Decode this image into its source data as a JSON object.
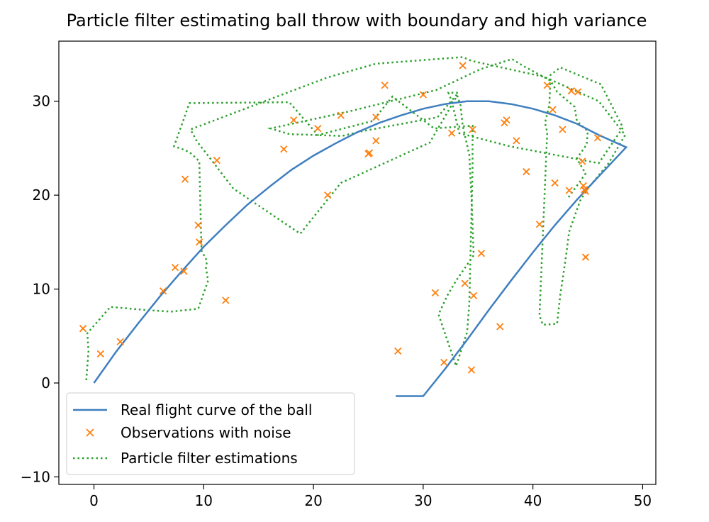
{
  "chart_data": {
    "type": "line",
    "title": "Particle filter estimating ball throw with boundary and high variance",
    "xlabel": "",
    "ylabel": "",
    "xlim": [
      -3.2,
      51.2
    ],
    "ylim": [
      -10.8,
      36.4
    ],
    "xticks": [
      0,
      10,
      20,
      30,
      40,
      50
    ],
    "yticks": [
      -10,
      0,
      10,
      20,
      30
    ],
    "grid": false,
    "legend_position": "lower-left",
    "colors": {
      "real": "#3f7fbf",
      "obs": "#ff7f0e",
      "pf": "#2ca02c"
    },
    "series": [
      {
        "name": "Real flight curve of the ball",
        "style": "solid",
        "x": [
          0,
          2,
          4,
          6,
          8,
          10,
          12,
          14,
          16,
          18,
          20,
          22,
          24,
          26,
          28,
          30,
          32,
          34,
          35,
          36,
          38,
          40,
          42,
          44,
          46,
          48.5,
          46,
          44,
          42,
          40,
          38,
          36,
          34,
          32,
          30,
          27.5
        ],
        "y": [
          0,
          3.3,
          6.3,
          9.2,
          11.9,
          14.5,
          16.8,
          19.0,
          20.9,
          22.7,
          24.2,
          25.5,
          26.7,
          27.7,
          28.5,
          29.2,
          29.7,
          30.0,
          30.0,
          30.0,
          29.7,
          29.2,
          28.5,
          27.6,
          26.4,
          25.1,
          22.0,
          19.5,
          16.8,
          13.9,
          10.9,
          7.8,
          4.6,
          1.5,
          -1.4,
          -1.4
        ]
      },
      {
        "name": "Observations with noise",
        "style": "markers",
        "x": [
          -1,
          0.6,
          2.4,
          6.3,
          7.4,
          8.2,
          8.3,
          9.5,
          9.6,
          11.2,
          12.0,
          17.3,
          18.2,
          20.4,
          21.3,
          22.5,
          25.0,
          25.1,
          25.7,
          25.7,
          26.5,
          27.7,
          30.0,
          31.1,
          31.9,
          32.6,
          33.6,
          33.8,
          34.5,
          34.6,
          34.4,
          35.3,
          37.0,
          37.4,
          37.6,
          38.5,
          39.4,
          40.6,
          41.3,
          41.8,
          42.0,
          42.7,
          43.3,
          43.5,
          44.1,
          44.5,
          44.7,
          44.8,
          44.8,
          44.6,
          45.9
        ],
        "y": [
          5.8,
          3.1,
          4.4,
          9.8,
          12.3,
          11.9,
          21.7,
          16.8,
          15.0,
          23.7,
          8.8,
          24.9,
          28.0,
          27.1,
          20.0,
          28.5,
          24.4,
          24.5,
          25.8,
          28.3,
          31.7,
          3.4,
          30.7,
          9.6,
          2.2,
          26.6,
          33.8,
          10.6,
          27.0,
          9.3,
          1.4,
          13.8,
          6.0,
          27.7,
          28.0,
          25.8,
          22.5,
          16.9,
          31.7,
          29.1,
          21.3,
          27.0,
          20.5,
          31.1,
          31.0,
          23.6,
          20.6,
          20.4,
          13.4,
          21.0,
          26.1
        ]
      },
      {
        "name": "Particle filter estimations",
        "style": "dotted",
        "x": [
          -0.7,
          -0.5,
          -0.6,
          1.5,
          4.4,
          7.0,
          9.5,
          10.4,
          10.2,
          10.3,
          9.8,
          9.6,
          8.9,
          8.3,
          7.3,
          8.7,
          17.8,
          20.4,
          25.4,
          27.2,
          31.0,
          34.5,
          34.5,
          34.2,
          34.0,
          33.0,
          31.4,
          32.2,
          33.0,
          34.6,
          34.4,
          34.2,
          33.6,
          33.4,
          33.1,
          30.6,
          22.5,
          18.8,
          12.7,
          10.4,
          9.4,
          8.8,
          21.2,
          25.7,
          33.6,
          34.4,
          41.0,
          44.1,
          46.0,
          48.4,
          46.9,
          45.7,
          45.0,
          44.3,
          43.3,
          43.0,
          42.5,
          42.2,
          40.9,
          40.6,
          41.3,
          41.1,
          41.5,
          41.6,
          42.5,
          46.2,
          48.2,
          46.0,
          37.9,
          33.3,
          32.6,
          32.3,
          33.2,
          31.3,
          24.4,
          22.6,
          17.8,
          16.1,
          23.2,
          31.2,
          35.2,
          38.1,
          39.2,
          41.6,
          42.2,
          43.8,
          44.0,
          45.0,
          44.9,
          44.0,
          44.8,
          44.2,
          43.5,
          43.2
        ],
        "y": [
          0.3,
          3.4,
          5.3,
          8.1,
          7.8,
          7.6,
          7.9,
          10.9,
          12.3,
          13.0,
          14.1,
          23.6,
          24.4,
          24.8,
          25.2,
          29.8,
          29.9,
          26.4,
          27.9,
          30.5,
          27.1,
          27.4,
          22.7,
          8.4,
          5.4,
          1.8,
          7.3,
          9.3,
          10.9,
          13.6,
          19.8,
          24.3,
          27.4,
          29.6,
          30.6,
          25.6,
          21.3,
          15.9,
          20.7,
          24.2,
          25.7,
          27.0,
          32.5,
          34.0,
          34.7,
          34.3,
          32.6,
          31.0,
          30.0,
          26.4,
          23.4,
          21.7,
          20.7,
          19.4,
          16.1,
          13.4,
          9.4,
          6.3,
          6.2,
          7.2,
          26.7,
          27.7,
          29.6,
          32.8,
          33.6,
          31.8,
          27.2,
          23.4,
          25.2,
          26.6,
          30.0,
          30.9,
          30.9,
          28.3,
          26.8,
          26.3,
          26.5,
          27.1,
          28.9,
          31.2,
          33.4,
          34.5,
          33.7,
          32.2,
          31.0,
          29.4,
          27.9,
          26.8,
          25.4,
          23.9,
          22.3,
          21.3,
          20.2,
          19.7
        ]
      }
    ]
  }
}
